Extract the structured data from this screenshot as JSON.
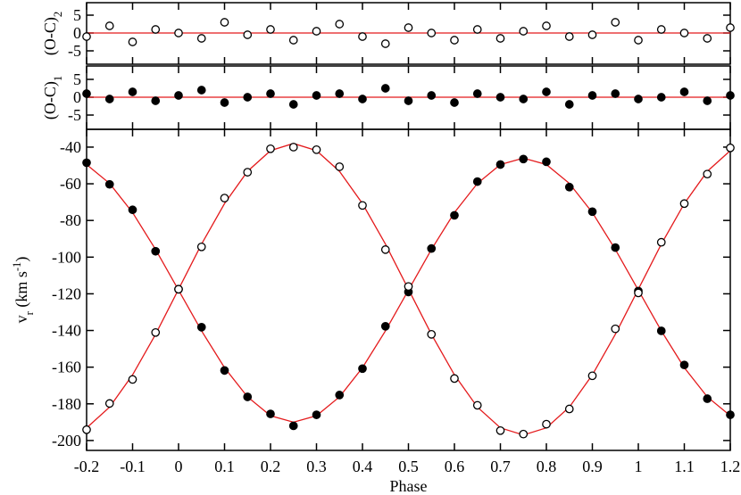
{
  "chart_data": [
    {
      "type": "scatter",
      "ylabel_parts": [
        {
          "text": "(O-C)",
          "baseline": "normal"
        },
        {
          "text": "2",
          "baseline": "sub"
        }
      ],
      "x": [
        -0.2,
        -0.15,
        -0.1,
        -0.05,
        0,
        0.05,
        0.1,
        0.15,
        0.2,
        0.25,
        0.3,
        0.35,
        0.4,
        0.45,
        0.5,
        0.55,
        0.6,
        0.65,
        0.7,
        0.75,
        0.8,
        0.85,
        0.9,
        0.95,
        1,
        1.05,
        1.1,
        1.15,
        1.2
      ],
      "xlim": [
        -0.2,
        1.2
      ],
      "ylim": [
        -8.75,
        8.5
      ],
      "yticks": [
        -5,
        0,
        5
      ],
      "reference_line": {
        "value": 0,
        "color": "#e41a1c"
      },
      "series": [
        {
          "color": "#000000",
          "marker": "open",
          "values": [
            -1,
            2,
            -2.5,
            1,
            0,
            -1.5,
            3,
            -0.5,
            1,
            -2,
            0.5,
            2.5,
            -1,
            -3,
            1.5,
            0,
            -2,
            1,
            -1.5,
            0.5,
            2,
            -1,
            -0.5,
            3,
            -2,
            1,
            0,
            -1.5,
            1.5
          ]
        }
      ]
    },
    {
      "type": "scatter",
      "ylabel_parts": [
        {
          "text": "(O-C)",
          "baseline": "normal"
        },
        {
          "text": "1",
          "baseline": "sub"
        }
      ],
      "x": [
        -0.2,
        -0.15,
        -0.1,
        -0.05,
        0,
        0.05,
        0.1,
        0.15,
        0.2,
        0.25,
        0.3,
        0.35,
        0.4,
        0.45,
        0.5,
        0.55,
        0.6,
        0.65,
        0.7,
        0.75,
        0.8,
        0.85,
        0.9,
        0.95,
        1,
        1.05,
        1.1,
        1.15,
        1.2
      ],
      "xlim": [
        -0.2,
        1.2
      ],
      "ylim": [
        -9,
        8.75
      ],
      "yticks": [
        -5,
        0,
        5
      ],
      "reference_line": {
        "value": 0,
        "color": "#e41a1c"
      },
      "series": [
        {
          "color": "#000000",
          "marker": "filled",
          "values": [
            1,
            -0.5,
            1.5,
            -1,
            0.5,
            2,
            -1.5,
            0,
            1,
            -2,
            0.5,
            1,
            -0.5,
            2.5,
            -1,
            0.5,
            -1.5,
            1,
            0,
            -0.5,
            1.5,
            -2,
            0.5,
            1,
            -0.5,
            0,
            1.5,
            -1,
            0.5
          ]
        }
      ]
    },
    {
      "type": "scatter",
      "xlabel": "Phase",
      "ylabel_parts": [
        {
          "text": "v",
          "baseline": "normal"
        },
        {
          "text": "r",
          "baseline": "sub"
        },
        {
          "text": " (km s",
          "baseline": "normal"
        },
        {
          "text": "-1",
          "baseline": "super"
        },
        {
          "text": ")",
          "baseline": "normal"
        }
      ],
      "x": [
        -0.2,
        -0.15,
        -0.1,
        -0.05,
        0,
        0.05,
        0.1,
        0.15,
        0.2,
        0.25,
        0.3,
        0.35,
        0.4,
        0.45,
        0.5,
        0.55,
        0.6,
        0.65,
        0.7,
        0.75,
        0.8,
        0.85,
        0.9,
        0.95,
        1,
        1.05,
        1.1,
        1.15,
        1.2
      ],
      "xlim": [
        -0.2,
        1.2
      ],
      "xticks": [
        -0.2,
        -0.1,
        0,
        0.1,
        0.2,
        0.3,
        0.4,
        0.5,
        0.6,
        0.7,
        0.8,
        0.9,
        1,
        1.1,
        1.2
      ],
      "ylim": [
        -205.4,
        -30.3
      ],
      "yticks": [
        -200,
        -180,
        -160,
        -140,
        -120,
        -100,
        -80,
        -60,
        -40
      ],
      "series": [
        {
          "color": "#e41a1c",
          "marker": "line",
          "values": [
            -49.5,
            -59.8,
            -75.7,
            -95.8,
            -118,
            -140.2,
            -160.3,
            -176.2,
            -186.5,
            -190,
            -186.5,
            -176.2,
            -160.3,
            -140.2,
            -118,
            -95.8,
            -75.7,
            -59.8,
            -49.5,
            -46,
            -49.5,
            -59.8,
            -75.7,
            -95.8,
            -118,
            -140.2,
            -160.3,
            -176.2,
            -186.5
          ]
        },
        {
          "color": "#e41a1c",
          "marker": "line",
          "values": [
            -193.1,
            -181.8,
            -164.2,
            -142.1,
            -117.5,
            -92.9,
            -70.8,
            -53.2,
            -41.9,
            -38,
            -41.9,
            -53.2,
            -70.8,
            -92.9,
            -117.5,
            -142.1,
            -164.2,
            -181.8,
            -193.1,
            -197,
            -193.1,
            -181.8,
            -164.2,
            -142.1,
            -117.5,
            -92.9,
            -70.8,
            -53.2,
            -41.9
          ]
        },
        {
          "color": "#000000",
          "marker": "filled",
          "values": [
            -48.5,
            -60.3,
            -74.2,
            -96.8,
            -117.5,
            -138.2,
            -161.8,
            -176.2,
            -185.5,
            -192,
            -186,
            -175.2,
            -160.8,
            -137.7,
            -119,
            -95.3,
            -77.2,
            -58.8,
            -49.5,
            -46.5,
            -48,
            -61.8,
            -75.2,
            -94.8,
            -118.5,
            -140.2,
            -158.8,
            -177.2,
            -186
          ]
        },
        {
          "color": "#000000",
          "marker": "open",
          "values": [
            -194.1,
            -179.8,
            -166.7,
            -141.1,
            -117.5,
            -94.4,
            -67.8,
            -53.7,
            -40.9,
            -40,
            -41.4,
            -50.7,
            -71.8,
            -95.9,
            -116,
            -142.1,
            -166.2,
            -180.8,
            -194.6,
            -196.5,
            -191.1,
            -182.8,
            -164.7,
            -139.1,
            -119.5,
            -91.9,
            -70.8,
            -54.7,
            -40.4
          ]
        }
      ]
    }
  ]
}
